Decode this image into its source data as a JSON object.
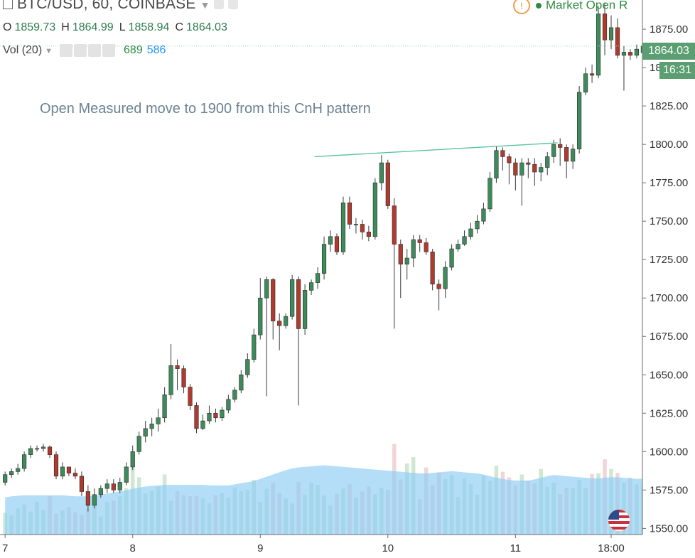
{
  "header": {
    "symbol": "BTC/USD, 60, COINBASE",
    "ohlc": {
      "o_label": "O",
      "o": "1859.73",
      "h_label": "H",
      "h": "1864.99",
      "l_label": "L",
      "l": "1858.94",
      "c_label": "C",
      "c": "1864.03"
    },
    "volume": {
      "label": "Vol (20)",
      "value_up": "689",
      "value_ma": "586"
    },
    "market_status": "Market Open  R"
  },
  "annotation": "Open Measured move to 1900 from this CnH pattern",
  "price_tag": "1864.03",
  "time_tag": "16:31",
  "colors": {
    "up": "#3d8b5a",
    "down": "#b03a2e",
    "wick": "#3a3a3a",
    "volume_up": "#cfe8d4",
    "volume_down": "#f0d6d8",
    "volume_ma_fill": "#8ccdf5",
    "trendline": "#5cc4a4",
    "price_line": "#9fd3c1",
    "market_green": "#2e8b43"
  },
  "icons": [
    "collapse-icon",
    "settings-icon",
    "warning-icon",
    "us-flag-icon"
  ],
  "chart_data": {
    "type": "candlestick",
    "title": "BTC/USD, 60, COINBASE",
    "x_ticks": [
      {
        "label": "7",
        "index": 0
      },
      {
        "label": "8",
        "index": 20
      },
      {
        "label": "9",
        "index": 40
      },
      {
        "label": "10",
        "index": 60
      },
      {
        "label": "11",
        "index": 80
      },
      {
        "label": "18:00",
        "index": 95
      }
    ],
    "y_ticks": [
      1550,
      1575,
      1600,
      1625,
      1650,
      1675,
      1700,
      1725,
      1750,
      1775,
      1800,
      1825,
      1850,
      1875
    ],
    "ylim": [
      1546,
      1894
    ],
    "y_tick_labels": [
      "1550.00",
      "1575.00",
      "1600.00",
      "1625.00",
      "1650.00",
      "1675.00",
      "1700.00",
      "1725.00",
      "1750.00",
      "1775.00",
      "1800.00",
      "1825.00",
      "1850.00",
      "1875.00"
    ],
    "index_range": [
      -0.8,
      99.9
    ],
    "trendline": {
      "from": [
        48.5,
        1792
      ],
      "to": [
        86.6,
        1801
      ]
    },
    "last_price": 1864.03,
    "closes": [
      1585,
      1587,
      1589,
      1598,
      1602,
      1602,
      1603,
      1598,
      1584,
      1590,
      1586,
      1584,
      1574,
      1565,
      1572,
      1576,
      1579,
      1575,
      1580,
      1590,
      1600,
      1610,
      1615,
      1618,
      1622,
      1637,
      1656,
      1654,
      1642,
      1630,
      1615,
      1620,
      1625,
      1622,
      1627,
      1634,
      1640,
      1650,
      1660,
      1676,
      1700,
      1712,
      1685,
      1682,
      1688,
      1712,
      1680,
      1705,
      1710,
      1716,
      1735,
      1740,
      1730,
      1762,
      1748,
      1748,
      1743,
      1740,
      1775,
      1788,
      1760,
      1735,
      1722,
      1726,
      1738,
      1736,
      1730,
      1709,
      1706,
      1720,
      1732,
      1735,
      1740,
      1745,
      1750,
      1758,
      1778,
      1796,
      1792,
      1788,
      1780,
      1788,
      1787,
      1782,
      1785,
      1792,
      1800,
      1798,
      1789,
      1797,
      1834,
      1846,
      1845,
      1885,
      1868,
      1876,
      1858,
      1860,
      1858,
      1862,
      1864.03
    ],
    "opens": [
      1580,
      1585,
      1587,
      1589,
      1598,
      1602,
      1602,
      1603,
      1598,
      1584,
      1590,
      1586,
      1584,
      1574,
      1565,
      1572,
      1576,
      1579,
      1575,
      1580,
      1590,
      1600,
      1610,
      1615,
      1618,
      1622,
      1637,
      1656,
      1654,
      1642,
      1630,
      1615,
      1620,
      1625,
      1622,
      1627,
      1634,
      1640,
      1650,
      1660,
      1676,
      1700,
      1712,
      1685,
      1682,
      1688,
      1712,
      1680,
      1705,
      1710,
      1716,
      1735,
      1740,
      1730,
      1762,
      1748,
      1748,
      1743,
      1740,
      1775,
      1788,
      1760,
      1735,
      1722,
      1726,
      1738,
      1736,
      1730,
      1709,
      1706,
      1720,
      1732,
      1735,
      1740,
      1745,
      1750,
      1758,
      1778,
      1796,
      1792,
      1788,
      1780,
      1788,
      1787,
      1782,
      1785,
      1792,
      1800,
      1798,
      1789,
      1797,
      1834,
      1846,
      1845,
      1885,
      1868,
      1876,
      1858,
      1860,
      1858,
      1859.73
    ],
    "highs": [
      1587,
      1589,
      1592,
      1600,
      1604,
      1604,
      1605,
      1604,
      1600,
      1593,
      1590,
      1589,
      1587,
      1578,
      1576,
      1578,
      1582,
      1582,
      1583,
      1593,
      1604,
      1613,
      1620,
      1622,
      1628,
      1642,
      1670,
      1660,
      1656,
      1644,
      1632,
      1624,
      1630,
      1628,
      1629,
      1637,
      1642,
      1653,
      1664,
      1680,
      1713,
      1714,
      1713,
      1690,
      1690,
      1715,
      1714,
      1709,
      1712,
      1720,
      1740,
      1744,
      1742,
      1766,
      1766,
      1752,
      1751,
      1747,
      1778,
      1793,
      1790,
      1765,
      1738,
      1732,
      1741,
      1741,
      1739,
      1732,
      1712,
      1724,
      1735,
      1738,
      1744,
      1749,
      1754,
      1762,
      1782,
      1799,
      1798,
      1794,
      1791,
      1791,
      1791,
      1791,
      1788,
      1795,
      1803,
      1804,
      1800,
      1800,
      1838,
      1850,
      1852,
      1890,
      1892,
      1884,
      1882,
      1864,
      1862,
      1865,
      1864.99
    ],
    "lows": [
      1578,
      1583,
      1585,
      1587,
      1596,
      1600,
      1600,
      1596,
      1582,
      1582,
      1584,
      1582,
      1571,
      1561,
      1563,
      1570,
      1573,
      1573,
      1573,
      1578,
      1588,
      1598,
      1606,
      1610,
      1613,
      1619,
      1634,
      1640,
      1638,
      1627,
      1612,
      1614,
      1618,
      1619,
      1620,
      1625,
      1632,
      1638,
      1648,
      1658,
      1673,
      1636,
      1673,
      1666,
      1680,
      1686,
      1630,
      1676,
      1702,
      1706,
      1712,
      1730,
      1728,
      1728,
      1745,
      1742,
      1738,
      1737,
      1738,
      1770,
      1758,
      1680,
      1700,
      1712,
      1720,
      1730,
      1728,
      1705,
      1692,
      1700,
      1718,
      1730,
      1734,
      1738,
      1742,
      1748,
      1756,
      1775,
      1783,
      1774,
      1770,
      1760,
      1778,
      1773,
      1776,
      1780,
      1788,
      1786,
      1778,
      1784,
      1794,
      1832,
      1840,
      1843,
      1858,
      1862,
      1856,
      1835,
      1855,
      1856,
      1858.94
    ],
    "volume_bars": [
      40,
      35,
      48,
      55,
      42,
      60,
      45,
      70,
      38,
      44,
      50,
      41,
      36,
      47,
      52,
      33,
      60,
      62,
      70,
      85,
      130,
      105,
      75,
      80,
      88,
      110,
      62,
      80,
      72,
      70,
      70,
      66,
      58,
      72,
      76,
      68,
      86,
      80,
      82,
      100,
      60,
      84,
      95,
      76,
      66,
      57,
      97,
      73,
      95,
      91,
      72,
      53,
      75,
      85,
      93,
      68,
      79,
      88,
      74,
      86,
      82,
      166,
      101,
      130,
      142,
      65,
      123,
      91,
      114,
      102,
      109,
      69,
      103,
      93,
      73,
      107,
      98,
      126,
      115,
      105,
      90,
      110,
      98,
      94,
      120,
      87,
      95,
      74,
      86,
      85,
      100,
      85,
      111,
      112,
      138,
      120,
      113,
      95,
      104,
      92,
      90
    ],
    "volume_ma": [
      68,
      70,
      71,
      72,
      72,
      72,
      72,
      72,
      72,
      72,
      71,
      70,
      70,
      70,
      71,
      73,
      75,
      77,
      79,
      81,
      84,
      86,
      88,
      89,
      90,
      91,
      91,
      91,
      91,
      91,
      91,
      91,
      90,
      90,
      90,
      90,
      92,
      94,
      96,
      98,
      102,
      106,
      110,
      114,
      118,
      121,
      123,
      124,
      125,
      126,
      127,
      126,
      125,
      124,
      123,
      122,
      121,
      120,
      119,
      118,
      117,
      116,
      115,
      114,
      113,
      112,
      112,
      113,
      114,
      115,
      116,
      115,
      114,
      113,
      112,
      110,
      107,
      104,
      102,
      100,
      99,
      99,
      99,
      101,
      104,
      107,
      109,
      108,
      107,
      106,
      105,
      104,
      103,
      103,
      104,
      105,
      105,
      104,
      103,
      102,
      102
    ]
  }
}
